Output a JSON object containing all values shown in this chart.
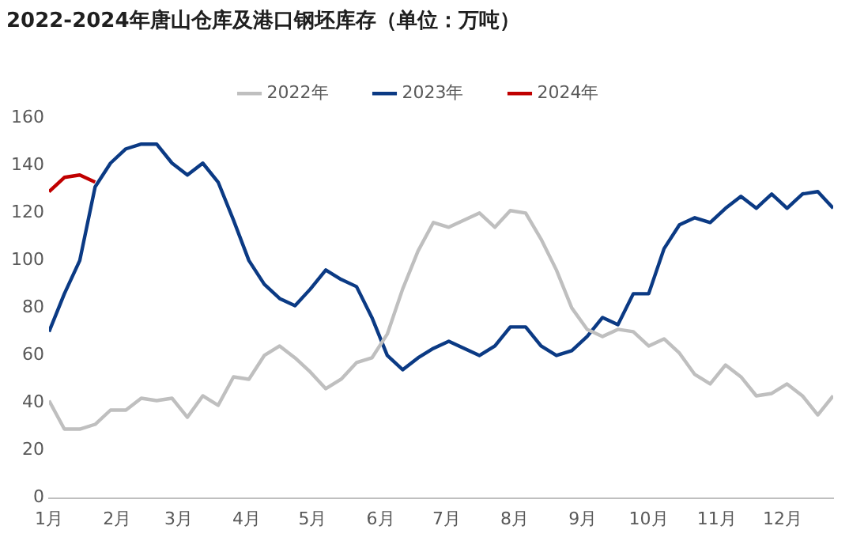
{
  "chart_data": {
    "type": "line",
    "title": "2022-2024年唐山仓库及港口钢坯库存（单位：万吨）",
    "x": [
      "--01-01",
      "--01-08",
      "--01-15",
      "--01-22",
      "--01-29",
      "--02-05",
      "--02-12",
      "--02-19",
      "--02-26",
      "--03-05",
      "--03-12",
      "--03-19",
      "--03-26",
      "--04-02",
      "--04-09",
      "--04-16",
      "--04-23",
      "--04-30",
      "--05-07",
      "--05-14",
      "--05-21",
      "--05-28",
      "--06-04",
      "--06-11",
      "--06-18",
      "--06-25",
      "--07-02",
      "--07-09",
      "--07-16",
      "--07-23",
      "--07-30",
      "--08-06",
      "--08-13",
      "--08-20",
      "--08-27",
      "--09-03",
      "--09-10",
      "--09-17",
      "--09-24",
      "--10-01",
      "--10-08",
      "--10-15",
      "--10-22",
      "--10-29",
      "--11-05",
      "--11-12",
      "--11-19",
      "--11-26",
      "--12-03",
      "--12-10",
      "--12-17",
      "--12-24"
    ],
    "series": [
      {
        "name": "2022年",
        "color": "#bfbfbf",
        "values": [
          41,
          29,
          29,
          31,
          37,
          37,
          42,
          41,
          42,
          34,
          43,
          39,
          51,
          50,
          60,
          64,
          59,
          53,
          46,
          50,
          57,
          59,
          69,
          88,
          104,
          116,
          114,
          117,
          120,
          114,
          121,
          120,
          109,
          96,
          80,
          71,
          68,
          71,
          70,
          64,
          67,
          61,
          52,
          48,
          56,
          51,
          43,
          44,
          48,
          43,
          35,
          43
        ]
      },
      {
        "name": "2023年",
        "color": "#0b3a84",
        "values": [
          70,
          86,
          100,
          131,
          141,
          147,
          149,
          149,
          141,
          136,
          141,
          133,
          117,
          100,
          90,
          84,
          81,
          88,
          96,
          92,
          89,
          76,
          60,
          54,
          59,
          63,
          66,
          63,
          60,
          64,
          72,
          72,
          64,
          60,
          62,
          68,
          76,
          73,
          86,
          86,
          105,
          115,
          118,
          116,
          122,
          127,
          122,
          128,
          122,
          128,
          129,
          122
        ]
      },
      {
        "name": "2024年",
        "color": "#c00000",
        "values": [
          129,
          135,
          136,
          133,
          null,
          null,
          null,
          null,
          null,
          null,
          null,
          null,
          null,
          null,
          null,
          null,
          null,
          null,
          null,
          null,
          null,
          null,
          null,
          null,
          null,
          null,
          null,
          null,
          null,
          null,
          null,
          null,
          null,
          null,
          null,
          null,
          null,
          null,
          null,
          null,
          null,
          null,
          null,
          null,
          null,
          null,
          null,
          null,
          null,
          null,
          null,
          null
        ]
      }
    ],
    "xlim": [
      "--01-01",
      "--12-24"
    ],
    "xticks": [
      {
        "value": "--01-01",
        "label": "1月"
      },
      {
        "value": "--02-01",
        "label": "2月"
      },
      {
        "value": "--03-01",
        "label": "3月"
      },
      {
        "value": "--04-01",
        "label": "4月"
      },
      {
        "value": "--05-01",
        "label": "5月"
      },
      {
        "value": "--06-01",
        "label": "6月"
      },
      {
        "value": "--07-01",
        "label": "7月"
      },
      {
        "value": "--08-01",
        "label": "8月"
      },
      {
        "value": "--09-01",
        "label": "9月"
      },
      {
        "value": "--10-01",
        "label": "10月"
      },
      {
        "value": "--11-01",
        "label": "11月"
      },
      {
        "value": "--12-01",
        "label": "12月"
      }
    ],
    "ylim": [
      0,
      160
    ],
    "yticks": [
      0,
      20,
      40,
      60,
      80,
      100,
      120,
      140,
      160
    ],
    "grid": false,
    "legend": "top",
    "marker": "none",
    "line_style": "solid"
  }
}
